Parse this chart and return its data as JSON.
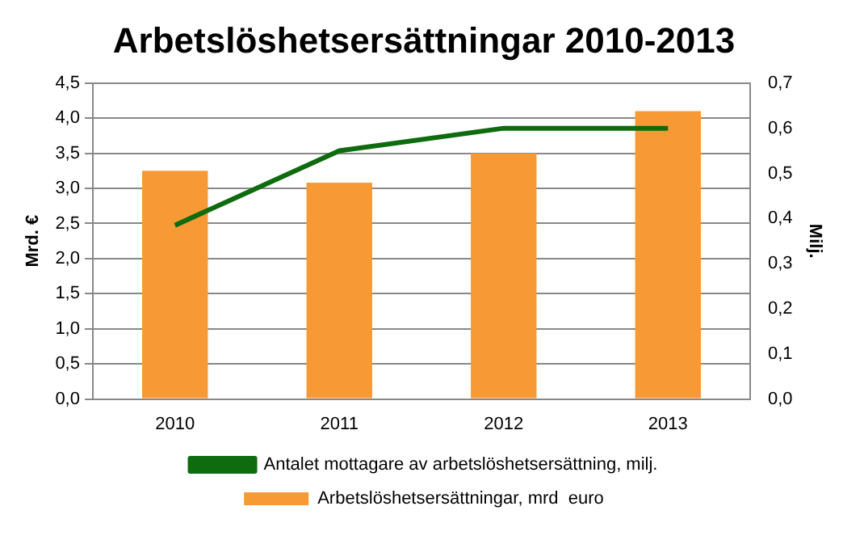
{
  "chart_data": {
    "type": "bar",
    "title": "Arbetslöshetsersättningar 2010-2013",
    "ylabel": "Mrd. €",
    "y2label": "Milj.",
    "categories": [
      "2010",
      "2011",
      "2012",
      "2013"
    ],
    "series": [
      {
        "name": "Arbetslöshetsersättningar, mrd  euro",
        "color": "#f79a36",
        "values": [
          3.25,
          3.08,
          3.5,
          4.1
        ]
      },
      {
        "type": "line",
        "axis": "y2",
        "name": "Antalet mottagare av arbetslöshetsersättning, milj.",
        "color": "#0e6b0e",
        "values": [
          0.385,
          0.55,
          0.6,
          0.6
        ]
      }
    ],
    "ylim": [
      0,
      4.5
    ],
    "yticks": [
      {
        "value": 0,
        "label": "0,0"
      },
      {
        "value": 0.5,
        "label": "0,5"
      },
      {
        "value": 1,
        "label": "1,0"
      },
      {
        "value": 1.5,
        "label": "1,5"
      },
      {
        "value": 2,
        "label": "2,0"
      },
      {
        "value": 2.5,
        "label": "2,5"
      },
      {
        "value": 3,
        "label": "3,0"
      },
      {
        "value": 3.5,
        "label": "3,5"
      },
      {
        "value": 4,
        "label": "4,0"
      },
      {
        "value": 4.5,
        "label": "4,5"
      }
    ],
    "y2lim": [
      0,
      0.7
    ],
    "y2ticks": [
      {
        "value": 0,
        "label": "0,0"
      },
      {
        "value": 0.1,
        "label": "0,1"
      },
      {
        "value": 0.2,
        "label": "0,2"
      },
      {
        "value": 0.3,
        "label": "0,3"
      },
      {
        "value": 0.4,
        "label": "0,4"
      },
      {
        "value": 0.5,
        "label": "0,5"
      },
      {
        "value": 0.6,
        "label": "0,6"
      },
      {
        "value": 0.7,
        "label": "0,7"
      }
    ],
    "grid": "y",
    "legend": "bottom",
    "marker": "none"
  }
}
